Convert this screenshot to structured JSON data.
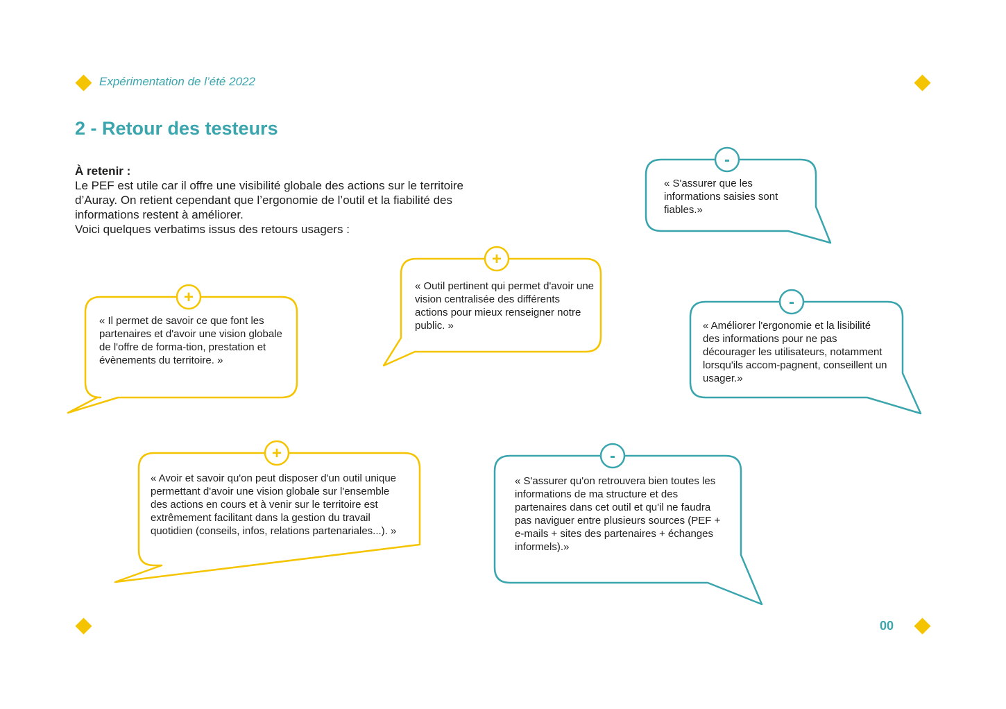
{
  "header": {
    "subtitle": "Expérimentation de l’été 2022"
  },
  "section": {
    "title": "2 - Retour des testeurs"
  },
  "intro": {
    "label": "À retenir :",
    "paragraphs": [
      "Le PEF est utile car il offre une visibilité globale des actions sur le territoire d’Auray. On retient cependant que l’ergonomie de l’outil et la fiabilité des informations restent à améliorer.",
      "Voici quelques verbatims issus des retours usagers :"
    ]
  },
  "colors": {
    "positive": "#f5c400",
    "negative": "#3aa5ad",
    "accent_diamond": "#f5c400",
    "title": "#3aa5ad"
  },
  "icons": {
    "positive": "plus-icon",
    "negative": "minus-icon",
    "decor": "diamond-icon"
  },
  "verbatims": [
    {
      "sentiment": "positive",
      "sign": "+",
      "text": "« Il permet de savoir ce que font les partenaires et d'avoir une vision globale de l'offre de forma-tion, prestation et évènements du territoire. »"
    },
    {
      "sentiment": "positive",
      "sign": "+",
      "text": "« Outil pertinent qui permet d'avoir une vision centralisée des différents actions pour mieux renseigner notre public. »"
    },
    {
      "sentiment": "negative",
      "sign": "-",
      "text": "« S'assurer que les informations saisies sont fiables.»"
    },
    {
      "sentiment": "negative",
      "sign": "-",
      "text": "« Améliorer l'ergonomie et la lisibilité des informations pour ne pas décourager les utilisateurs, notamment lorsqu'ils accom-pagnent, conseillent un usager.»"
    },
    {
      "sentiment": "positive",
      "sign": "+",
      "text": "« Avoir et savoir qu'on peut disposer d'un outil unique permettant d'avoir une vision globale sur l'ensemble des actions en cours et à venir sur le territoire est extrêmement facilitant dans la gestion du travail quotidien (conseils, infos, relations partenariales...). »"
    },
    {
      "sentiment": "negative",
      "sign": "-",
      "text": "« S'assurer qu'on retrouvera bien toutes les informations de ma structure et des partenaires dans cet outil et qu'il ne faudra pas naviguer entre plusieurs sources (PEF + e-mails + sites des partenaires + échanges informels).»"
    }
  ],
  "footer": {
    "page_number": "00"
  }
}
